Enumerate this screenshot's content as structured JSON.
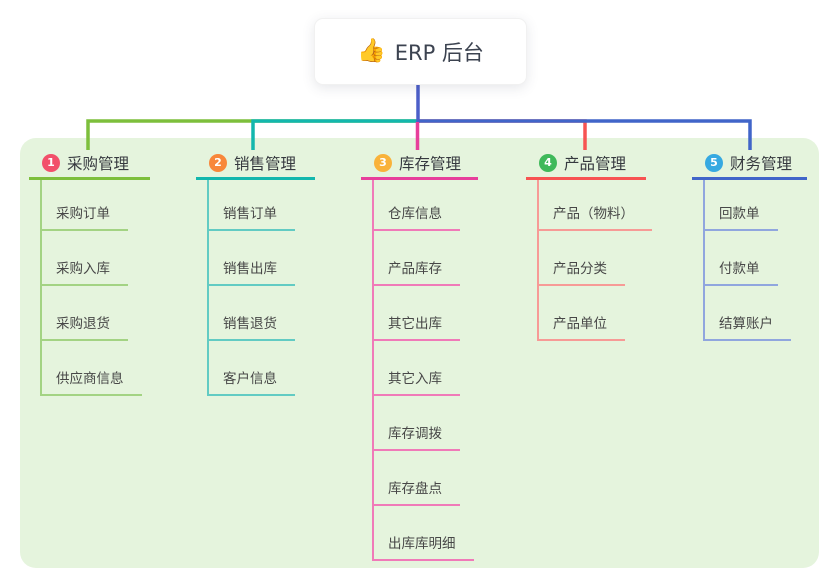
{
  "root": {
    "icon_glyph": "👍",
    "label": "ERP 后台"
  },
  "colors": {
    "root_connector": "#4c5fc9",
    "panel_bg": "#e5f4dd"
  },
  "branches": [
    {
      "number": "1",
      "label": "采购管理",
      "badge_color": "#f2506a",
      "line_color": "#7dbf3c",
      "child_line_color": "#a3d383",
      "children": [
        "采购订单",
        "采购入库",
        "采购退货",
        "供应商信息"
      ]
    },
    {
      "number": "2",
      "label": "销售管理",
      "badge_color": "#f8873a",
      "line_color": "#13b7ad",
      "child_line_color": "#62cbc3",
      "children": [
        "销售订单",
        "销售出库",
        "销售退货",
        "客户信息"
      ]
    },
    {
      "number": "3",
      "label": "库存管理",
      "badge_color": "#f9b23a",
      "line_color": "#e73f9b",
      "child_line_color": "#f07ab8",
      "children": [
        "仓库信息",
        "产品库存",
        "其它出库",
        "其它入库",
        "库存调拨",
        "库存盘点",
        "出库库明细"
      ]
    },
    {
      "number": "4",
      "label": "产品管理",
      "badge_color": "#3fb95a",
      "line_color": "#f75352",
      "child_line_color": "#f79a96",
      "children": [
        "产品（物料）",
        "产品分类",
        "产品单位"
      ]
    },
    {
      "number": "5",
      "label": "财务管理",
      "badge_color": "#36a9e1",
      "line_color": "#4165c9",
      "child_line_color": "#90a6de",
      "children": [
        "回款单",
        "付款单",
        "结算账户"
      ]
    }
  ]
}
